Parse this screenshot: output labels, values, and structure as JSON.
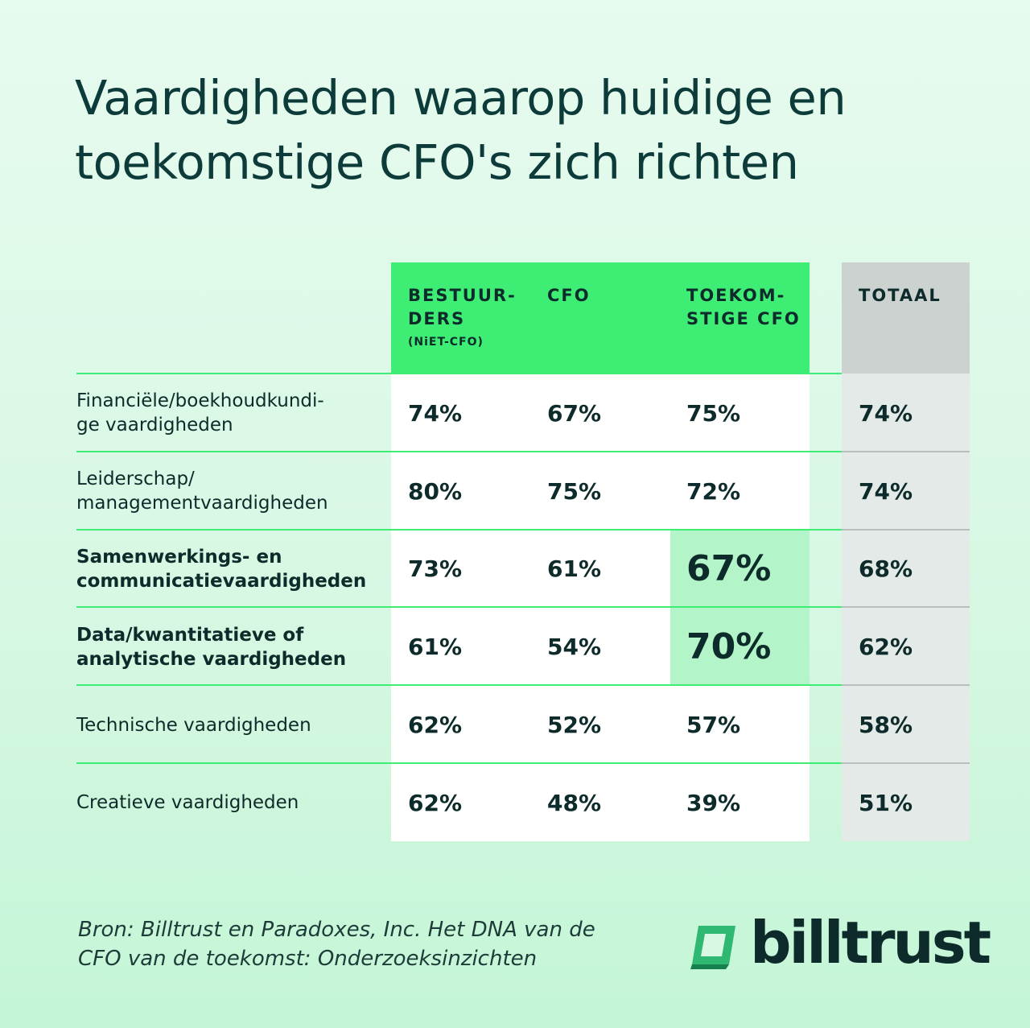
{
  "title": {
    "line1": "Vaardigheden waarop huidige en",
    "line2": "toekomstige CFO's zich richten"
  },
  "chart_data": {
    "type": "table",
    "columns": [
      {
        "label": "BESTUUR-\nDERS",
        "sublabel": "(NiET-CFO)"
      },
      {
        "label": "CFO",
        "sublabel": ""
      },
      {
        "label": "TOEKOM-\nSTIGE CFO",
        "sublabel": ""
      },
      {
        "label": "TOTAAL",
        "sublabel": ""
      }
    ],
    "rows": [
      {
        "label": "Financiële/boekhoudkundi-\nge vaardigheden",
        "bold": false,
        "values": [
          "74%",
          "67%",
          "75%",
          "74%"
        ]
      },
      {
        "label": "Leiderschap/\nmanagementvaardigheden",
        "bold": false,
        "values": [
          "80%",
          "75%",
          "72%",
          "74%"
        ]
      },
      {
        "label": "Samenwerkings- en\ncommunicatievaardigheden",
        "bold": true,
        "values": [
          "73%",
          "61%",
          "67%",
          "68%"
        ]
      },
      {
        "label": "Data/kwantitatieve of\nanalytische vaardigheden",
        "bold": true,
        "values": [
          "61%",
          "54%",
          "70%",
          "62%"
        ]
      },
      {
        "label": "Technische vaardigheden",
        "bold": false,
        "values": [
          "62%",
          "52%",
          "57%",
          "58%"
        ]
      },
      {
        "label": "Creatieve vaardigheden",
        "bold": false,
        "values": [
          "62%",
          "48%",
          "39%",
          "51%"
        ]
      }
    ],
    "highlight_cells": [
      [
        2,
        2
      ],
      [
        3,
        2
      ]
    ],
    "colors": {
      "header": "#3ded74",
      "highlight": "#b3f5c8",
      "total_header": "#ccd2d0",
      "total_body": "#e4eae7",
      "text": "#0d2b2a"
    }
  },
  "source": {
    "line1": "Bron: Billtrust en Paradoxes, Inc. Het DNA van de",
    "line2": "CFO van de toekomst: Onderzoeksinzichten"
  },
  "logo": {
    "text": "billtrust",
    "icon": "billtrust-logo-icon"
  }
}
